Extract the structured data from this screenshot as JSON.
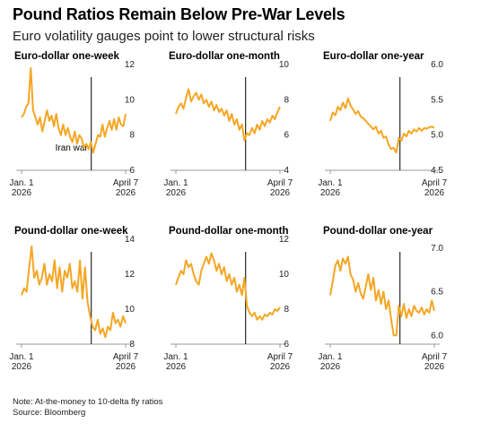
{
  "title": "Pound Ratios Remain Below Pre-War Levels",
  "subtitle": "Euro volatility gauges point to lower structural risks",
  "note": "Note: At-the-money to 10-delta fly ratios",
  "source": "Source: Bloomberg",
  "colors": {
    "line": "#f5a623",
    "event_line": "#000000",
    "axis": "#999999"
  },
  "chart_data": [
    {
      "type": "line",
      "title": "Euro-dollar one-week",
      "x_labels": [
        "Jan. 1\n2026",
        "April 7\n2026"
      ],
      "y_ticks": [
        6,
        8,
        10,
        12
      ],
      "ylim": [
        6,
        12
      ],
      "event_x": 0.67,
      "annotation": "Iran war",
      "series": [
        {
          "values": [
            9.0,
            9.2,
            9.6,
            9.8,
            11.8,
            9.4,
            9.0,
            8.6,
            9.0,
            8.2,
            8.8,
            9.4,
            8.8,
            9.1,
            8.5,
            9.2,
            8.4,
            8.0,
            8.6,
            8.0,
            8.4,
            7.9,
            7.6,
            8.2,
            7.5,
            8.0,
            7.8,
            7.3,
            7.5,
            7.2,
            7.6,
            7.0,
            7.5,
            8.0,
            7.9,
            8.6,
            7.9,
            8.4,
            8.8,
            8.3,
            8.9,
            8.3,
            9.0,
            8.6,
            8.5,
            9.2
          ]
        }
      ]
    },
    {
      "type": "line",
      "title": "Euro-dollar one-month",
      "x_labels": [
        "Jan. 1\n2026",
        "April 7\n2026"
      ],
      "y_ticks": [
        4,
        6,
        8,
        10
      ],
      "ylim": [
        4,
        10
      ],
      "event_x": 0.67,
      "series": [
        {
          "values": [
            7.2,
            7.6,
            7.8,
            7.5,
            8.1,
            8.6,
            7.9,
            8.2,
            8.4,
            8.0,
            8.3,
            7.8,
            8.0,
            7.6,
            7.9,
            7.4,
            7.7,
            7.3,
            7.5,
            7.1,
            7.4,
            6.8,
            7.2,
            6.6,
            6.9,
            6.3,
            6.6,
            5.7,
            6.1,
            6.0,
            6.4,
            6.1,
            6.6,
            6.3,
            6.8,
            6.5,
            6.9,
            6.7,
            7.1,
            6.9,
            7.3,
            7.6
          ]
        }
      ]
    },
    {
      "type": "line",
      "title": "Euro-dollar one-year",
      "x_labels": [
        "Jan. 1\n2026",
        "April 7\n2026"
      ],
      "y_ticks": [
        4.5,
        5.0,
        5.5,
        6.0
      ],
      "ylim": [
        4.5,
        6.0
      ],
      "event_x": 0.67,
      "series": [
        {
          "values": [
            5.2,
            5.32,
            5.28,
            5.4,
            5.35,
            5.46,
            5.38,
            5.52,
            5.42,
            5.36,
            5.3,
            5.34,
            5.26,
            5.24,
            5.2,
            5.16,
            5.12,
            5.08,
            5.12,
            5.02,
            5.06,
            4.96,
            4.98,
            4.86,
            4.8,
            4.82,
            4.75,
            4.96,
            4.92,
            5.02,
            4.98,
            5.06,
            5.02,
            5.08,
            5.05,
            5.1,
            5.06,
            5.1,
            5.09,
            5.11,
            5.12,
            5.1
          ]
        }
      ]
    },
    {
      "type": "line",
      "title": "Pound-dollar one-week",
      "x_labels": [
        "Jan. 1\n2026",
        "April 7\n2026"
      ],
      "y_ticks": [
        8,
        10,
        12,
        14
      ],
      "ylim": [
        8,
        14
      ],
      "event_x": 0.67,
      "series": [
        {
          "values": [
            10.8,
            11.2,
            11.0,
            12.4,
            13.6,
            11.8,
            12.2,
            11.4,
            11.8,
            12.6,
            11.4,
            12.0,
            11.6,
            12.8,
            11.2,
            12.4,
            11.0,
            12.2,
            11.8,
            12.6,
            11.2,
            11.6,
            11.0,
            12.8,
            10.6,
            12.4,
            10.4,
            9.6,
            9.0,
            8.8,
            9.4,
            8.6,
            8.9,
            8.4,
            9.0,
            8.8,
            9.8,
            9.2,
            9.4,
            9.0,
            9.6,
            9.2
          ]
        }
      ]
    },
    {
      "type": "line",
      "title": "Pound-dollar one-month",
      "x_labels": [
        "Jan. 1\n2026",
        "April 7\n2026"
      ],
      "y_ticks": [
        6,
        8,
        10,
        12
      ],
      "ylim": [
        6,
        12
      ],
      "event_x": 0.67,
      "series": [
        {
          "values": [
            9.4,
            9.8,
            10.2,
            10.0,
            10.8,
            10.4,
            10.6,
            10.0,
            9.6,
            9.4,
            10.2,
            10.6,
            11.0,
            10.6,
            11.2,
            10.8,
            10.2,
            10.6,
            10.0,
            10.4,
            9.6,
            10.0,
            9.4,
            9.8,
            9.0,
            9.4,
            8.8,
            9.8,
            8.2,
            7.8,
            7.6,
            7.8,
            7.4,
            7.6,
            7.4,
            7.7,
            7.6,
            7.8,
            7.7,
            8.0,
            7.9,
            8.1
          ]
        }
      ]
    },
    {
      "type": "line",
      "title": "Pound-dollar one-year",
      "x_labels": [
        "Jan. 1\n2026",
        "April 7\n2026"
      ],
      "y_ticks": [
        6.0,
        6.5,
        7.0
      ],
      "ylim": [
        5.9,
        7.1
      ],
      "event_x": 0.67,
      "series": [
        {
          "values": [
            6.46,
            6.62,
            6.8,
            6.86,
            6.74,
            6.88,
            6.82,
            6.9,
            6.7,
            6.64,
            6.5,
            6.6,
            6.48,
            6.42,
            6.56,
            6.7,
            6.52,
            6.66,
            6.4,
            6.52,
            6.36,
            6.5,
            6.3,
            6.4,
            6.18,
            6.0,
            6.0,
            6.34,
            6.22,
            6.36,
            6.2,
            6.3,
            6.22,
            6.34,
            6.28,
            6.26,
            6.32,
            6.24,
            6.3,
            6.26,
            6.4,
            6.28
          ]
        }
      ]
    }
  ]
}
